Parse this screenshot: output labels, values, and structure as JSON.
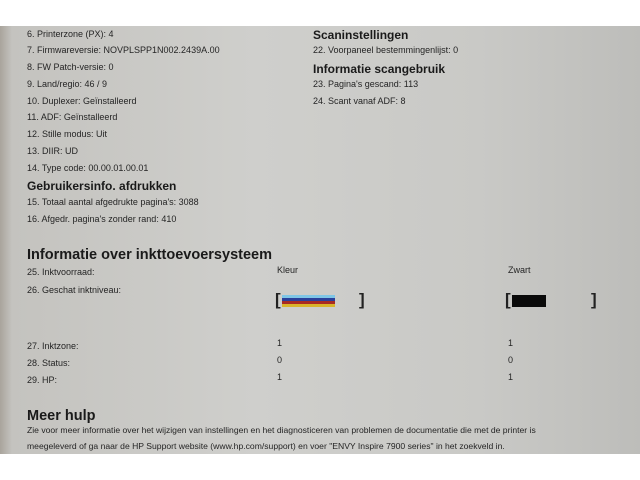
{
  "left_items": [
    "6. Printerzone (PX): 4",
    "7. Firmwareversie: NOVPLSPP1N002.2439A.00",
    "8. FW Patch-versie: 0",
    "9. Land/regio: 46  / 9",
    "10. Duplexer:  Geïnstalleerd",
    "11. ADF: Geïnstalleerd",
    "12. Stille modus: Uit",
    "13. DIIR: UD",
    "14. Type code: 00.00.01.00.01"
  ],
  "usage": {
    "title": "Gebruikersinfo. afdrukken",
    "items": [
      "15. Totaal aantal afgedrukte pagina's: 3088",
      "16. Afgedr. pagina's zonder rand: 410"
    ]
  },
  "scan_settings": {
    "title": "Scaninstellingen",
    "items": [
      "22. Voorpaneel bestemmingenlijst: 0"
    ]
  },
  "scan_usage": {
    "title": "Informatie scangebruik",
    "items": [
      "23. Pagina's gescand: 113",
      "24. Scant vanaf ADF: 8"
    ]
  },
  "ink": {
    "title": "Informatie over inkttoevoersysteem",
    "labels": [
      "25. Inktvoorraad:",
      "26. Geschat inktniveau:",
      "27. Inktzone:",
      "28. Status:",
      "29. HP:"
    ],
    "color": {
      "name": "Kleur",
      "level_percent": 60,
      "stripes": [
        "#7fc6e6",
        "#2a3f9a",
        "#a82a22",
        "#d9b42a"
      ],
      "zone": "1",
      "status": "0",
      "hp": "1"
    },
    "black": {
      "name": "Zwart",
      "level_percent": 40,
      "fill": "#0a0a0a",
      "zone": "1",
      "status": "0",
      "hp": "1"
    },
    "bracket_open": "[",
    "bracket_close": "]"
  },
  "help": {
    "title": "Meer hulp",
    "line1": "Zie voor meer informatie over het wijzigen van instellingen en het diagnosticeren van problemen de documentatie die met de printer is",
    "line2": "meegeleverd of ga naar de HP Support website (www.hp.com/support) en voer \"ENVY Inspire 7900 series\" in het zoekveld in."
  }
}
